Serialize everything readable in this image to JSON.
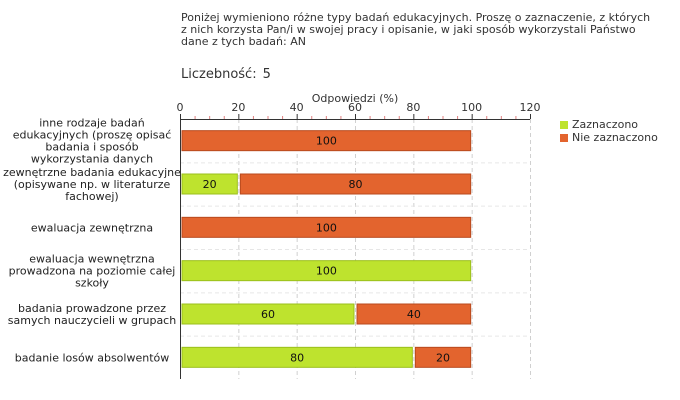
{
  "question_text": "Poniżej wymieniono różne typy badań edukacyjnych. Proszę o zaznaczenie, z których z nich korzysta Pan/i w swojej pracy i opisanie, w jaki sposób wykorzystali Państwo dane z tych badań:  AN",
  "count": {
    "label": "Liczebność:",
    "value": "5"
  },
  "legend": {
    "items": [
      {
        "label": "Zaznaczono",
        "color": "#bee32e"
      },
      {
        "label": "Nie zaznaczono",
        "color": "#e3642e"
      }
    ]
  },
  "chart_data": {
    "type": "bar",
    "orientation": "horizontal",
    "stacked": true,
    "title": "Odpowiedzi (%)",
    "xlim": [
      0,
      120
    ],
    "xticks": [
      0,
      20,
      40,
      60,
      80,
      100,
      120
    ],
    "categories": [
      [
        "inne rodzaje badań",
        "edukacyjnych (proszę opisać",
        "badania i sposób",
        "wykorzystania danych"
      ],
      [
        "zewnętrzne badania edukacyjne",
        "(opisywane np. w literaturze",
        "fachowej)"
      ],
      [
        "ewaluacja zewnętrzna"
      ],
      [
        "ewaluacja wewnętrzna",
        "prowadzona na poziomie całej",
        "szkoły"
      ],
      [
        "badania prowadzone przez",
        "samych nauczycieli w grupach"
      ],
      [
        "badanie losów absolwentów"
      ]
    ],
    "series": [
      {
        "name": "Zaznaczono",
        "color": "#bee32e",
        "values": [
          0,
          20,
          0,
          100,
          60,
          80
        ]
      },
      {
        "name": "Nie zaznaczono",
        "color": "#e3642e",
        "values": [
          100,
          80,
          100,
          0,
          40,
          20
        ]
      }
    ]
  }
}
